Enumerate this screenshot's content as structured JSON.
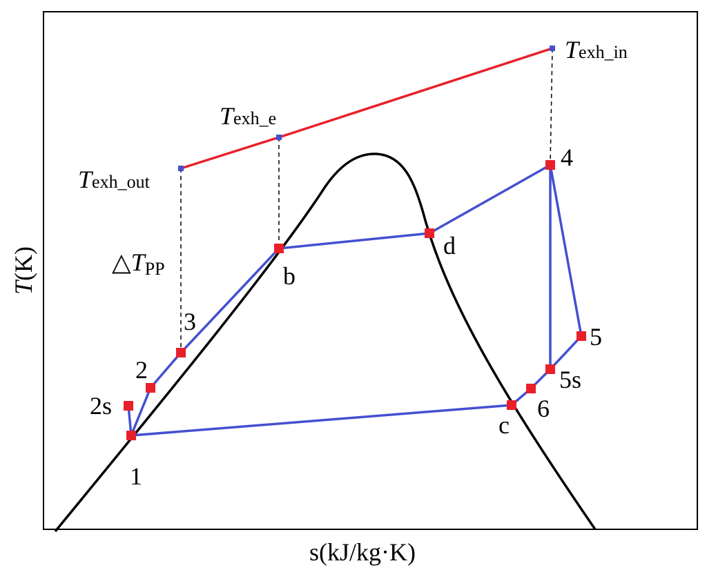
{
  "axes": {
    "y_label": {
      "symbol": "T",
      "text": "(K)"
    },
    "x_label": "s(kJ/kg·K)"
  },
  "exhaust_labels": {
    "in": {
      "symbol": "T",
      "subscript": "exh_in"
    },
    "e": {
      "symbol": "T",
      "subscript": "exh_e"
    },
    "out": {
      "symbol": "T",
      "subscript": "exh_out"
    },
    "pinch": {
      "symbol": "△T",
      "subscript": "PP"
    }
  },
  "points": [
    "1",
    "2s",
    "2",
    "3",
    "b",
    "d",
    "4",
    "5",
    "5s",
    "6",
    "c"
  ]
}
